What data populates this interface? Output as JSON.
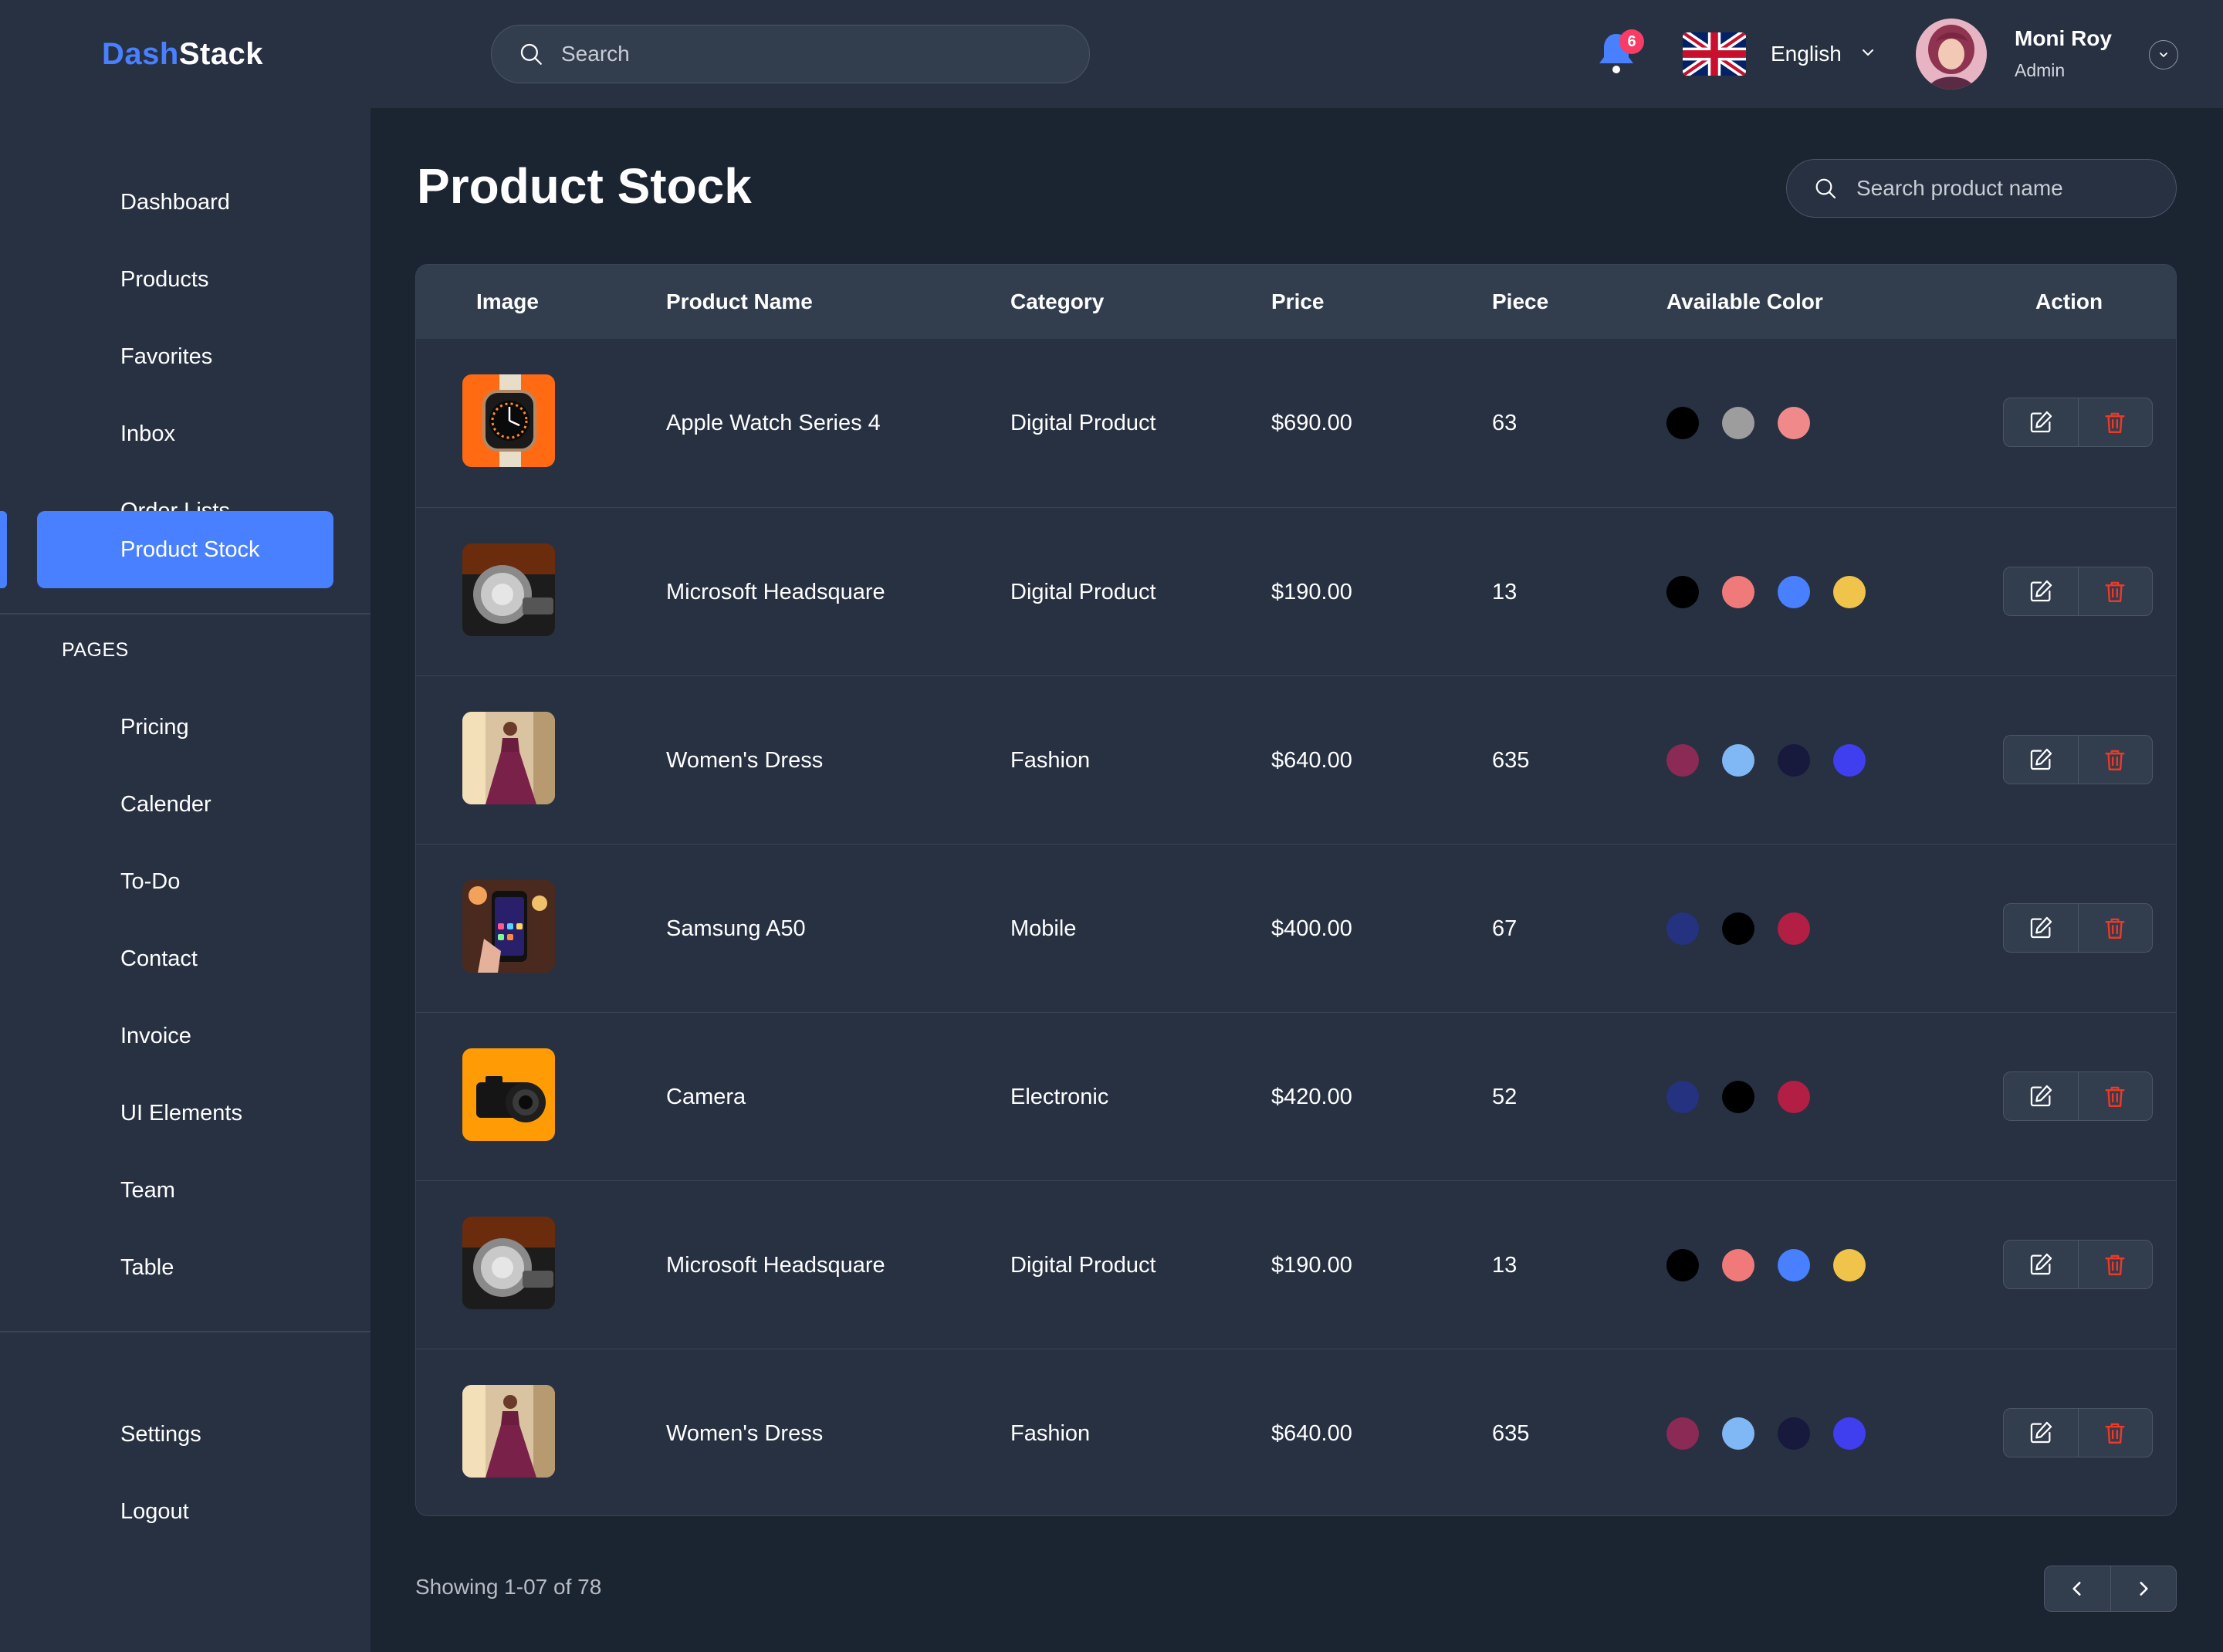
{
  "app": {
    "logo_part1": "Dash",
    "logo_part2": "Stack"
  },
  "header": {
    "search_placeholder": "Search",
    "notification_count": "6",
    "language": "English",
    "user_name": "Moni Roy",
    "user_role": "Admin"
  },
  "sidebar": {
    "items": [
      {
        "label": "Dashboard"
      },
      {
        "label": "Products"
      },
      {
        "label": "Favorites"
      },
      {
        "label": "Inbox"
      },
      {
        "label": "Order Lists"
      },
      {
        "label": "Product Stock",
        "active": true
      }
    ],
    "pages_heading": "PAGES",
    "pages": [
      {
        "label": "Pricing"
      },
      {
        "label": "Calender"
      },
      {
        "label": "To-Do"
      },
      {
        "label": "Contact"
      },
      {
        "label": "Invoice"
      },
      {
        "label": "UI Elements"
      },
      {
        "label": "Team"
      },
      {
        "label": "Table"
      }
    ],
    "bottom": [
      {
        "label": "Settings"
      },
      {
        "label": "Logout"
      }
    ]
  },
  "main": {
    "title": "Product Stock",
    "search_placeholder": "Search product name",
    "columns": [
      "Image",
      "Product Name",
      "Category",
      "Price",
      "Piece",
      "Available Color",
      "Action"
    ],
    "rows": [
      {
        "image": "apple-watch-image",
        "name": "Apple Watch Series 4",
        "category": "Digital Product",
        "price": "$690.00",
        "piece": "63",
        "colors": [
          "#000000",
          "#9d9d9d",
          "#f08a8a"
        ]
      },
      {
        "image": "headset-image",
        "name": "Microsoft Headsquare",
        "category": "Digital Product",
        "price": "$190.00",
        "piece": "13",
        "colors": [
          "#000000",
          "#f07a7a",
          "#4880ff",
          "#f0c34b"
        ]
      },
      {
        "image": "dress-image",
        "name": "Women's Dress",
        "category": "Fashion",
        "price": "$640.00",
        "piece": "635",
        "colors": [
          "#8a2a55",
          "#7fb8f5",
          "#17193d",
          "#3f3ff0"
        ]
      },
      {
        "image": "phone-image",
        "name": "Samsung A50",
        "category": "Mobile",
        "price": "$400.00",
        "piece": "67",
        "colors": [
          "#253280",
          "#000000",
          "#b31e45"
        ]
      },
      {
        "image": "camera-image",
        "name": "Camera",
        "category": "Electronic",
        "price": "$420.00",
        "piece": "52",
        "colors": [
          "#253280",
          "#000000",
          "#b31e45"
        ]
      },
      {
        "image": "headset-image",
        "name": "Microsoft Headsquare",
        "category": "Digital Product",
        "price": "$190.00",
        "piece": "13",
        "colors": [
          "#000000",
          "#f07a7a",
          "#4880ff",
          "#f0c34b"
        ]
      },
      {
        "image": "dress-image",
        "name": "Women's Dress",
        "category": "Fashion",
        "price": "$640.00",
        "piece": "635",
        "colors": [
          "#8a2a55",
          "#7fb8f5",
          "#17193d",
          "#3f3ff0"
        ]
      }
    ],
    "showing_text": "Showing 1-07 of 78"
  },
  "colors": {
    "accent": "#4880ff",
    "danger": "#ef3826",
    "badge": "#f93c65"
  },
  "icons": {
    "edit": "edit-icon",
    "delete": "trash-icon",
    "prev": "chevron-left-icon",
    "next": "chevron-right-icon"
  }
}
